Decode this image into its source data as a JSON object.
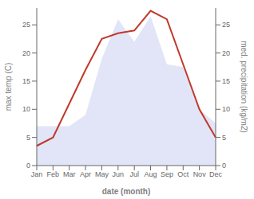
{
  "chart_data": {
    "type": "line",
    "xlabel": "date (month)",
    "ylabel": "max temp (C)",
    "y2label": "med. precipitation (kg/m2)",
    "categories": [
      "Jan",
      "Feb",
      "Mar",
      "Apr",
      "May",
      "Jun",
      "Jul",
      "Aug",
      "Sep",
      "Oct",
      "Nov",
      "Dec"
    ],
    "series": [
      {
        "type": "area",
        "axis": "y2",
        "color": "#c8d0f0",
        "values": [
          7.0,
          7.0,
          7.0,
          9.0,
          19.0,
          26.0,
          22.0,
          26.5,
          18.0,
          17.5,
          10.0,
          7.5
        ]
      },
      {
        "type": "line",
        "color": "#c0392b",
        "values": [
          3.5,
          5.0,
          11.0,
          17.0,
          22.5,
          23.5,
          24.0,
          27.5,
          26.0,
          18.0,
          10.0,
          5.0
        ]
      }
    ],
    "ylim": [
      0,
      28
    ],
    "yticks": [
      0,
      5,
      10,
      15,
      20,
      25
    ],
    "y2lim": [
      0,
      28
    ],
    "y2ticks": [
      0,
      5,
      10,
      15,
      20,
      25
    ],
    "grid": false
  }
}
